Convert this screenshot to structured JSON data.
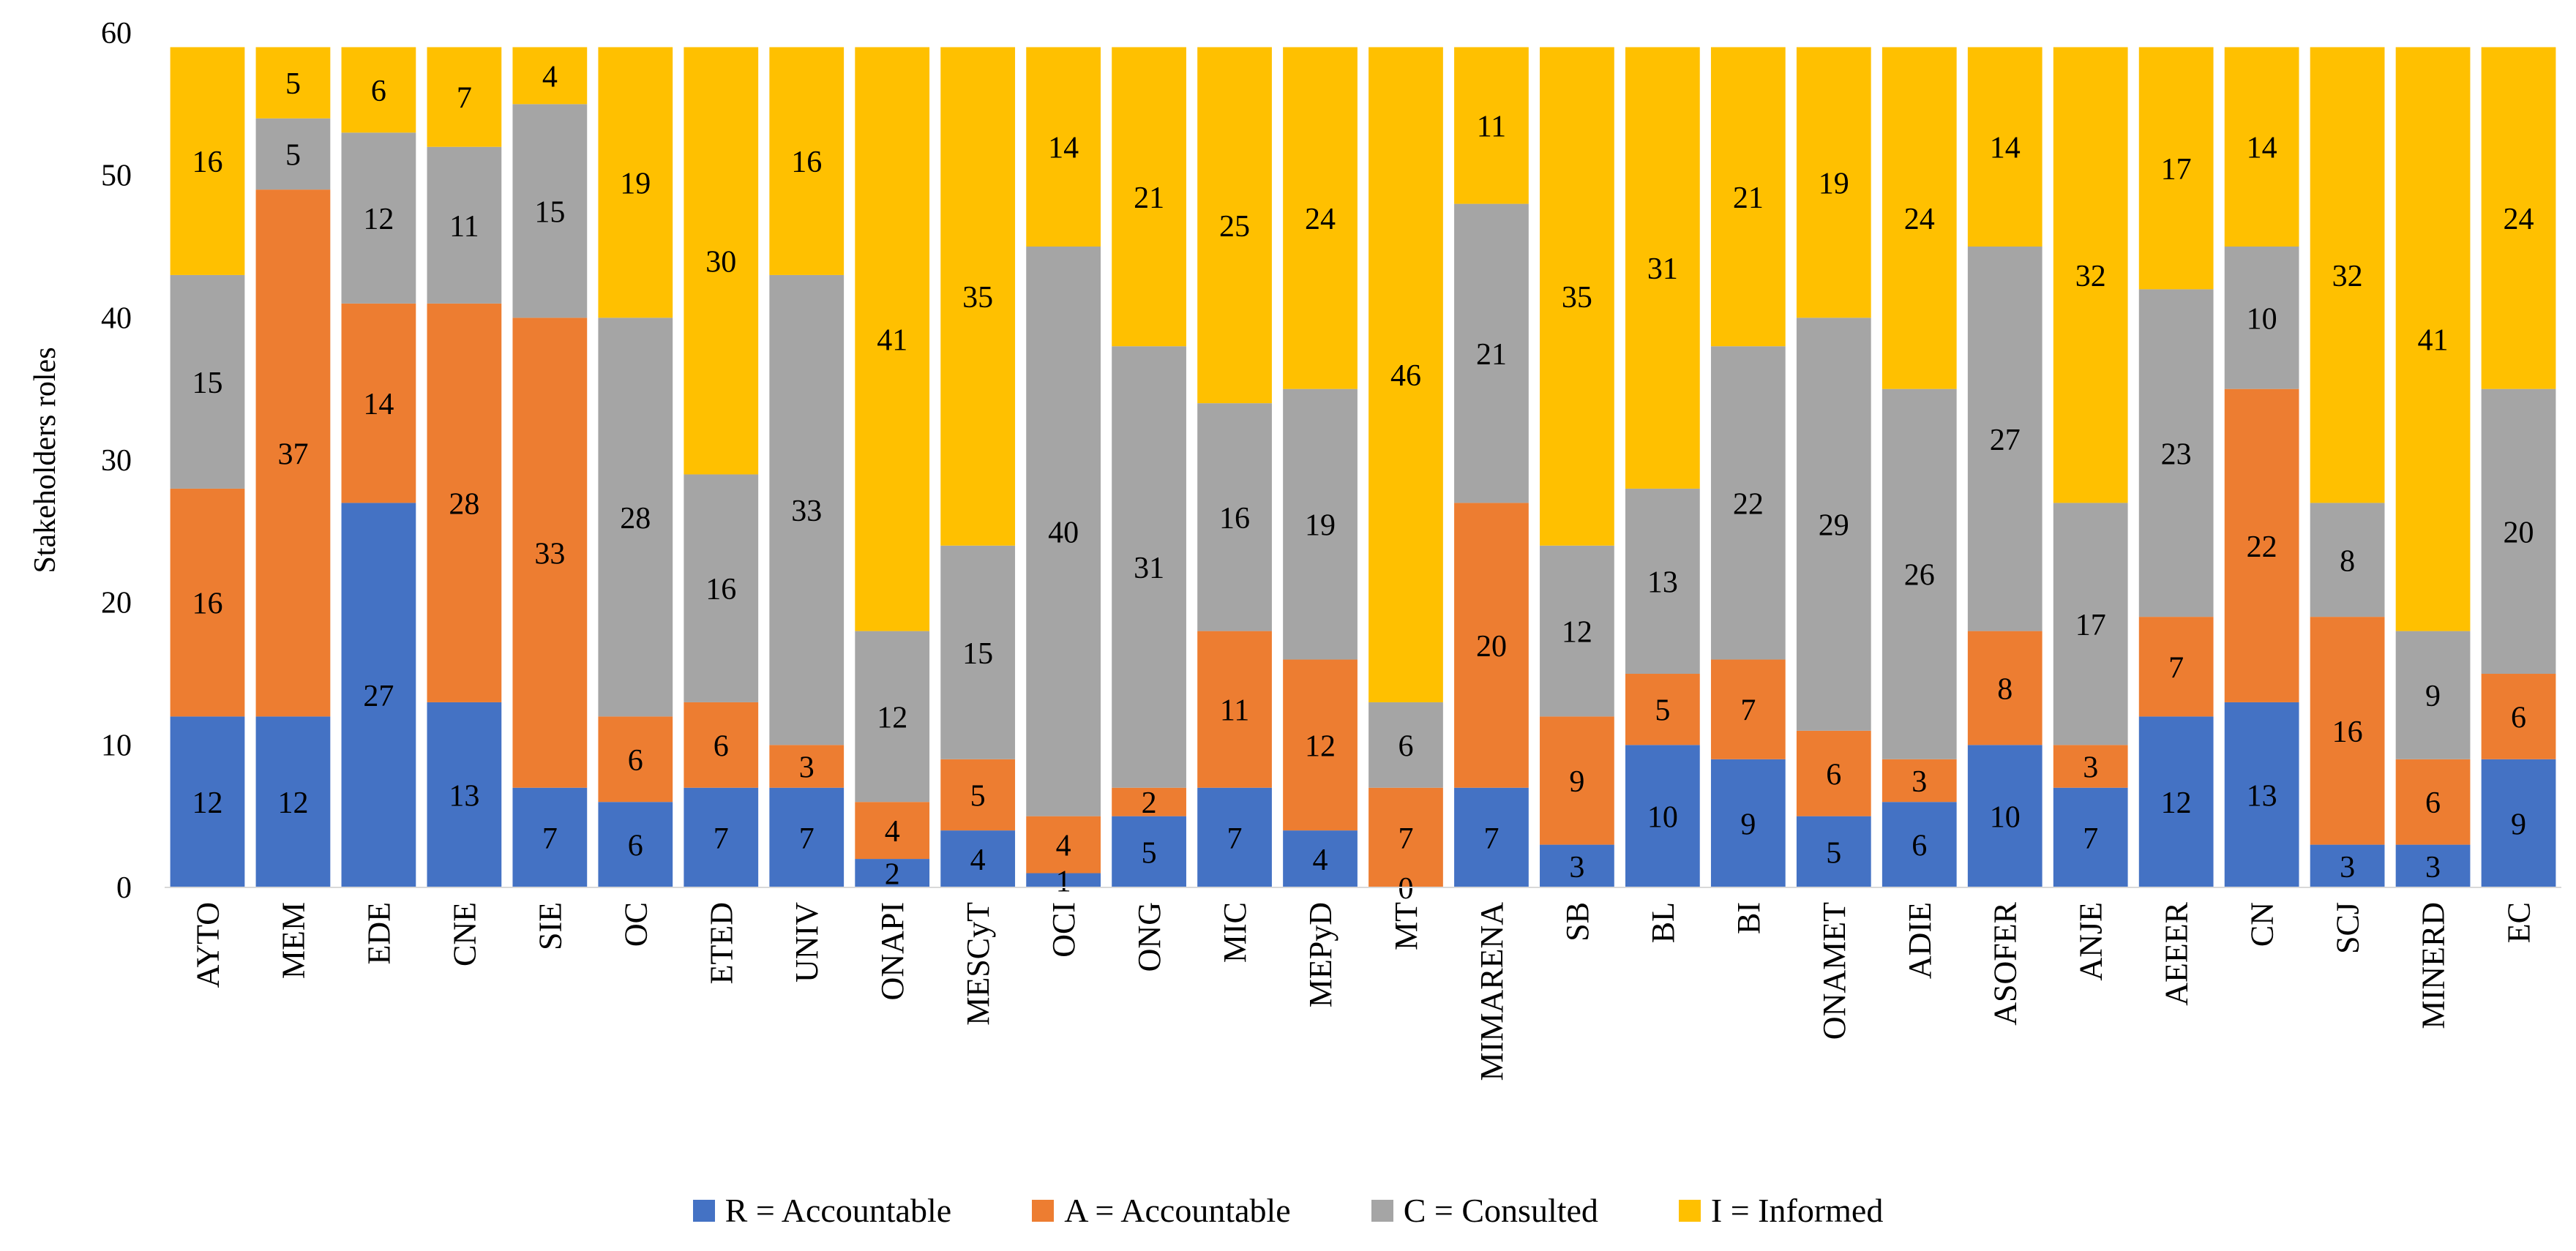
{
  "chart_data": {
    "type": "bar",
    "stacked": true,
    "ylabel": "Stakeholders roles",
    "xlabel": "",
    "ylim": [
      0,
      60
    ],
    "yticks": [
      0,
      10,
      20,
      30,
      40,
      50,
      60
    ],
    "grid": false,
    "legend_position": "bottom",
    "categories": [
      "AYTO",
      "MEM",
      "EDE",
      "CNE",
      "SIE",
      "OC",
      "ETED",
      "UNIV",
      "ONAPI",
      "MESCyT",
      "OCI",
      "ONG",
      "MIC",
      "MEPyD",
      "MT",
      "MIMARENA",
      "SB",
      "BL",
      "BI",
      "ONAMET",
      "ADIE",
      "ASOFER",
      "ANJE",
      "AEEER",
      "CN",
      "SCJ",
      "MINERD",
      "EC"
    ],
    "series": [
      {
        "name": "R = Accountable",
        "color": "#4472C4",
        "values": [
          12,
          12,
          27,
          13,
          7,
          6,
          7,
          7,
          2,
          4,
          1,
          5,
          7,
          4,
          0,
          7,
          3,
          10,
          9,
          5,
          6,
          10,
          7,
          12,
          13,
          3,
          3,
          9
        ]
      },
      {
        "name": "A = Accountable",
        "color": "#ED7D31",
        "values": [
          16,
          37,
          14,
          28,
          33,
          6,
          6,
          3,
          4,
          5,
          4,
          2,
          11,
          12,
          7,
          20,
          9,
          5,
          7,
          6,
          3,
          8,
          3,
          7,
          22,
          16,
          6,
          6
        ]
      },
      {
        "name": "C = Consulted",
        "color": "#A5A5A5",
        "values": [
          15,
          5,
          12,
          11,
          15,
          28,
          16,
          33,
          12,
          15,
          40,
          31,
          16,
          19,
          6,
          21,
          12,
          13,
          22,
          29,
          26,
          27,
          17,
          23,
          10,
          8,
          9,
          20
        ]
      },
      {
        "name": "I = Informed",
        "color": "#FFC000",
        "values": [
          16,
          5,
          6,
          7,
          4,
          19,
          30,
          16,
          41,
          35,
          14,
          21,
          25,
          24,
          46,
          11,
          35,
          31,
          21,
          19,
          24,
          14,
          32,
          17,
          14,
          32,
          41,
          24
        ]
      }
    ]
  }
}
